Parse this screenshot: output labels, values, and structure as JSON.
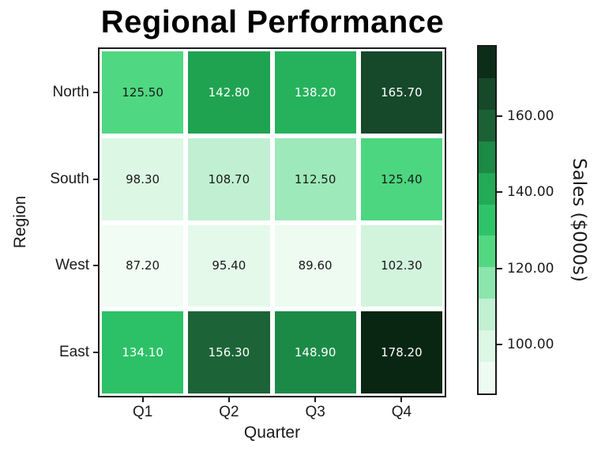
{
  "figure": {
    "background": "#ffffff"
  },
  "chart_data": {
    "type": "heatmap",
    "title": "Regional Performance",
    "xlabel": "Quarter",
    "ylabel": "Region",
    "x_categories": [
      "Q1",
      "Q2",
      "Q3",
      "Q4"
    ],
    "y_categories": [
      "North",
      "South",
      "West",
      "East"
    ],
    "values": [
      [
        125.5,
        142.8,
        138.2,
        165.7
      ],
      [
        98.3,
        108.7,
        112.5,
        125.4
      ],
      [
        87.2,
        95.4,
        89.6,
        102.3
      ],
      [
        134.1,
        156.3,
        148.9,
        178.2
      ]
    ],
    "value_labels": [
      [
        "125.50",
        "142.80",
        "138.20",
        "165.70"
      ],
      [
        "98.30",
        "108.70",
        "112.50",
        "125.40"
      ],
      [
        "87.20",
        "95.40",
        "89.60",
        "102.30"
      ],
      [
        "134.10",
        "156.30",
        "148.90",
        "178.20"
      ]
    ],
    "cell_colors": [
      [
        "#4fd881",
        "#1fa351",
        "#26b25c",
        "#16482a"
      ],
      [
        "#ddf7e5",
        "#c0f0d1",
        "#9de9ba",
        "#4cd67f"
      ],
      [
        "#f0fcf4",
        "#e4f9ea",
        "#edfbf1",
        "#d2f4dd"
      ],
      [
        "#2cc166",
        "#1c6437",
        "#1c8a47",
        "#082611"
      ]
    ],
    "vmin": 87.2,
    "vmax": 178.2,
    "annotation_colors": {
      "on_dark": "#ffffff",
      "on_light": "#1a1a1a"
    },
    "colorbar": {
      "label": "Sales ($000s)",
      "tick_values": [
        100,
        120,
        140,
        160
      ],
      "tick_labels": [
        "100.00",
        "120.00",
        "140.00",
        "160.00"
      ],
      "band_colors_top_to_bottom": [
        "#0c2e18",
        "#16482a",
        "#1b6136",
        "#1c8945",
        "#22aa56",
        "#2fc46a",
        "#52d881",
        "#8ce5ad",
        "#c1f0d2",
        "#dcf7e4",
        "#eefbf2"
      ]
    },
    "grid": false,
    "legend_position": "colorbar-right"
  }
}
